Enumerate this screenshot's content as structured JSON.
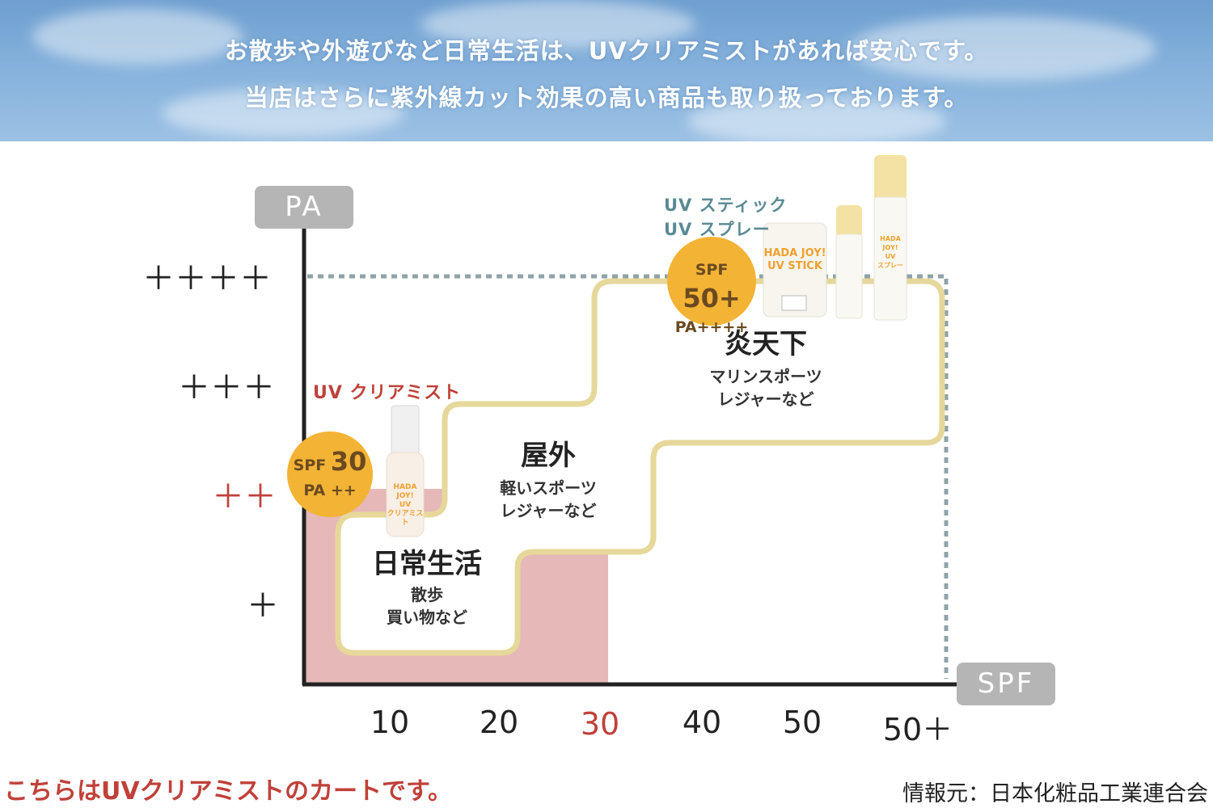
{
  "header": {
    "line1": "お散歩や外遊びなど日常生活は、UVクリアミストがあれば安心です。",
    "line2": "当店はさらに紫外線カット効果の高い商品も取り扱っております。"
  },
  "axes": {
    "y_label": "PA",
    "x_label": "SPF",
    "y_ticks": [
      "＋＋＋＋",
      "＋＋＋",
      "＋＋",
      "＋"
    ],
    "x_ticks": [
      "10",
      "20",
      "30",
      "40",
      "50",
      "50＋"
    ],
    "highlight_color": "#c0413a"
  },
  "zones": [
    {
      "title": "日常生活",
      "sub1": "散歩",
      "sub2": "買い物など"
    },
    {
      "title": "屋外",
      "sub1": "軽いスポーツ",
      "sub2": "レジャーなど"
    },
    {
      "title": "炎天下",
      "sub1": "マリンスポーツ",
      "sub2": "レジャーなど"
    }
  ],
  "products": {
    "mist": {
      "label": "UV クリアミスト",
      "spf_prefix": "SPF",
      "spf_value": "30",
      "pa": "PA ++",
      "brand": "HADA JOY!",
      "name1": "UV",
      "name2": "クリアミスト"
    },
    "high": {
      "label1": "UV スティック",
      "label2": "UV スプレー",
      "spf_prefix": "SPF",
      "spf_value": "50+",
      "pa": "PA++++",
      "brand": "HADA JOY!",
      "stick_name": "UV STICK",
      "spray_name1": "UV",
      "spray_name2": "スプレー"
    }
  },
  "footer": {
    "note": "こちらはUVクリアミストのカートです。",
    "source": "情報元：日本化粧品工業連合会"
  },
  "colors": {
    "badge": "#f3b334",
    "path": "#e6d89a",
    "pink": "#e6b8b8",
    "dotted": "#8fa3a8",
    "label_teal": "#5a8a94"
  }
}
